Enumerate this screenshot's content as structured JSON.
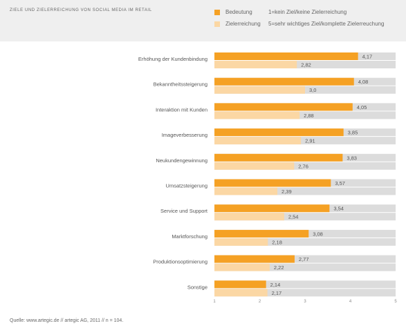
{
  "title": "ZIELE UND ZIELERREICHUNG VON SOCIAL MEDIA IM RETAIL",
  "legend": {
    "items": [
      {
        "label": "Bedeutung",
        "note": "1=kein Ziel/keine Zielerreichung",
        "color": "#f5a124"
      },
      {
        "label": "Zielerreichung",
        "note": "5=sehr wichtiges Ziel/komplette Zielerreuchung",
        "color": "#fbd7a4"
      }
    ]
  },
  "colors": {
    "bedeutung": "#f5a124",
    "zielerreichung": "#fbd7a4",
    "track": "#dcdcdc",
    "text": "#555555"
  },
  "chart_data": {
    "type": "bar",
    "orientation": "horizontal",
    "categories": [
      "Erhöhung der Kundenbindung",
      "Bekanntheitssteigerung",
      "Interaktion mit Kunden",
      "Imageverbesserung",
      "Neukundengewinnung",
      "Umsatzsteigerung",
      "Service und Support",
      "Marktforschung",
      "Produktionsoptimierung",
      "Sonstige"
    ],
    "series": [
      {
        "name": "Bedeutung",
        "values": [
          4.17,
          4.08,
          4.05,
          3.85,
          3.83,
          3.57,
          3.54,
          3.08,
          2.77,
          2.14
        ],
        "labels": [
          "4,17",
          "4,08",
          "4,05",
          "3,85",
          "3,83",
          "3,57",
          "3,54",
          "3,08",
          "2,77",
          "2,14"
        ]
      },
      {
        "name": "Zielerreichung",
        "values": [
          2.82,
          3.0,
          2.88,
          2.91,
          2.76,
          2.39,
          2.54,
          2.18,
          2.22,
          2.17
        ],
        "labels": [
          "2,82",
          "3,0",
          "2,88",
          "2,91",
          "2,76",
          "2,39",
          "2,54",
          "2,18",
          "2,22",
          "2,17"
        ]
      }
    ],
    "xlim": [
      1,
      5
    ],
    "xticks": [
      "1",
      "2",
      "3",
      "4",
      "5"
    ],
    "grid": false
  },
  "source": "Quelle: www.artegic.de // artegic AG, 2011 // n = 104."
}
